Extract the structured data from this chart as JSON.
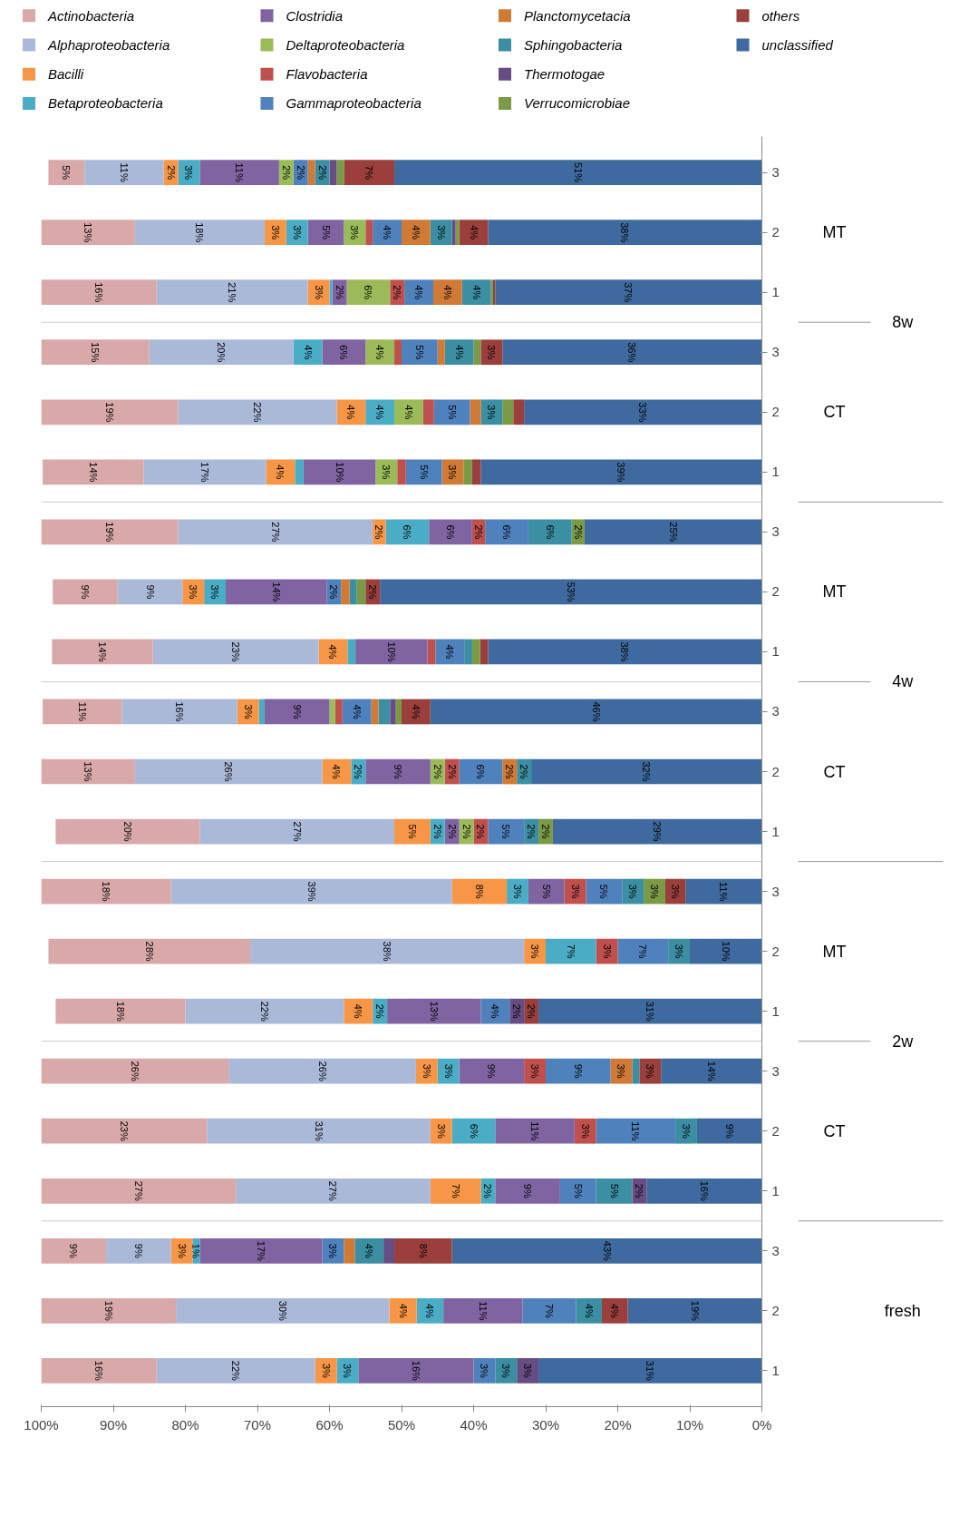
{
  "chart_data": {
    "type": "bar",
    "stacked": true,
    "orientation": "horizontal",
    "legend": "top",
    "grid": false,
    "categories": [
      "3",
      "2",
      "1",
      "3",
      "2",
      "1",
      "3",
      "2",
      "1",
      "3",
      "2",
      "1",
      "3",
      "2",
      "1",
      "3",
      "2",
      "1",
      "3",
      "2",
      "1"
    ],
    "xlim": [
      100,
      0
    ],
    "xticks": [
      {
        "value": 100,
        "label": "100%"
      },
      {
        "value": 90,
        "label": "90%"
      },
      {
        "value": 80,
        "label": "80%"
      },
      {
        "value": 70,
        "label": "70%"
      },
      {
        "value": 60,
        "label": "60%"
      },
      {
        "value": 50,
        "label": "50%"
      },
      {
        "value": 40,
        "label": "40%"
      },
      {
        "value": 30,
        "label": "30%"
      },
      {
        "value": 20,
        "label": "20%"
      },
      {
        "value": 10,
        "label": "10%"
      },
      {
        "value": 0,
        "label": "0%"
      }
    ],
    "annotations": [
      "MT",
      "CT",
      "MT",
      "CT",
      "MT",
      "CT",
      "8w",
      "4w",
      "2w",
      "fresh"
    ],
    "series": [
      {
        "name": "unclassified",
        "color": "#3f6a9f",
        "values": [
          51,
          38,
          37,
          36,
          33,
          39,
          24.6,
          53,
          38,
          46,
          32,
          29,
          10.6,
          10,
          31,
          14,
          9,
          16,
          43,
          18.6,
          31
        ],
        "value_labels": [
          "51%",
          "38%",
          "37%",
          "36%",
          "33%",
          "39%",
          "25%",
          "53%",
          "38%",
          "46%",
          "32%",
          "29%",
          "11%",
          "10%",
          "31%",
          "14%",
          "9%",
          "16%",
          "43%",
          "19%",
          "31%"
        ]
      },
      {
        "name": "others",
        "color": "#9a3f3c",
        "values": [
          7,
          4,
          0.3,
          3,
          1.5,
          1.2,
          0,
          2,
          1.1,
          4,
          0,
          0,
          2.8,
          0,
          2,
          3,
          0,
          0,
          8,
          3.6,
          0
        ],
        "value_labels": [
          "7%",
          "4%",
          null,
          "3%",
          null,
          null,
          null,
          "2%",
          null,
          "4%",
          null,
          null,
          "3%",
          null,
          "2%",
          "3%",
          null,
          null,
          "8%",
          "4%",
          null
        ]
      },
      {
        "name": "Verrucomicrobiae",
        "color": "#7a9a46",
        "values": [
          1,
          0.5,
          0.3,
          1,
          1.5,
          1.2,
          1.8,
          1.2,
          1.1,
          0.8,
          0,
          2,
          3,
          0,
          0,
          0,
          0,
          0,
          0,
          0,
          0
        ],
        "value_labels": [
          null,
          null,
          null,
          null,
          null,
          null,
          "2%",
          null,
          null,
          null,
          null,
          "2%",
          "3%",
          null,
          null,
          null,
          null,
          null,
          null,
          null,
          null
        ]
      },
      {
        "name": "Thermotogae",
        "color": "#664d83",
        "values": [
          1,
          0.5,
          0,
          0,
          0,
          0,
          0,
          0,
          0,
          0.8,
          0,
          0,
          0,
          0,
          2,
          0,
          0,
          2,
          1.5,
          0,
          3
        ],
        "value_labels": [
          null,
          null,
          null,
          null,
          null,
          null,
          null,
          null,
          null,
          null,
          null,
          null,
          null,
          null,
          "2%",
          null,
          null,
          "2%",
          null,
          null,
          "3%"
        ]
      },
      {
        "name": "Sphingobacteria",
        "color": "#3c8ea3",
        "values": [
          2,
          3,
          4,
          4,
          3,
          0,
          6,
          1,
          1.1,
          1.6,
          2,
          2,
          3,
          3,
          0,
          1,
          3,
          5,
          4,
          3.6,
          3
        ],
        "value_labels": [
          "2%",
          "3%",
          "4%",
          "4%",
          "3%",
          null,
          "6%",
          null,
          null,
          null,
          "2%",
          "2%",
          "3%",
          "3%",
          null,
          null,
          "3%",
          "5%",
          "4%",
          "4%",
          "3%"
        ]
      },
      {
        "name": "Planctomycetacia",
        "color": "#d07a36",
        "values": [
          1,
          4,
          4,
          1,
          1.5,
          3,
          0,
          1.2,
          0,
          1,
          2,
          0,
          0,
          0,
          0,
          3,
          0,
          0,
          1.5,
          0,
          0
        ],
        "value_labels": [
          null,
          "4%",
          "4%",
          null,
          null,
          "3%",
          null,
          null,
          null,
          null,
          "2%",
          null,
          null,
          null,
          null,
          "3%",
          null,
          null,
          null,
          null,
          null
        ]
      },
      {
        "name": "Gammaproteobacteria",
        "color": "#4f81bd",
        "values": [
          2,
          4,
          4,
          5,
          5,
          5,
          6,
          2,
          4,
          4,
          6,
          5,
          5,
          7,
          4,
          9,
          11,
          5,
          3,
          7.4,
          3
        ],
        "value_labels": [
          "2%",
          "4%",
          "4%",
          "5%",
          "5%",
          "5%",
          "6%",
          "2%",
          "4%",
          "4%",
          "6%",
          "5%",
          "5%",
          "7%",
          "4%",
          "9%",
          "11%",
          "5%",
          "3%",
          "7%",
          "3%"
        ]
      },
      {
        "name": "Flavobacteria",
        "color": "#c0504d",
        "values": [
          0,
          1,
          2,
          1,
          1.5,
          1.2,
          1.8,
          0,
          1.1,
          1,
          2,
          2,
          3,
          3,
          0,
          3,
          3,
          0,
          0,
          0,
          0
        ],
        "value_labels": [
          null,
          null,
          "2%",
          null,
          null,
          null,
          "2%",
          null,
          null,
          null,
          "2%",
          "2%",
          "3%",
          "3%",
          null,
          "3%",
          "3%",
          null,
          null,
          null,
          null
        ]
      },
      {
        "name": "Deltaproteobacteria",
        "color": "#9bbb59",
        "values": [
          2,
          3,
          6,
          4,
          4,
          3,
          0,
          0,
          0,
          0.8,
          2,
          2,
          0,
          0,
          0,
          0,
          0,
          0,
          0,
          0,
          0
        ],
        "value_labels": [
          "2%",
          "3%",
          "6%",
          "4%",
          "4%",
          "3%",
          null,
          null,
          null,
          null,
          "2%",
          "2%",
          null,
          null,
          null,
          null,
          null,
          null,
          null,
          null,
          null
        ]
      },
      {
        "name": "Clostridia",
        "color": "#8064a2",
        "values": [
          11,
          5,
          2,
          6,
          0,
          10,
          6,
          14,
          10,
          9,
          9,
          2,
          5,
          0,
          13,
          9,
          11,
          9,
          17,
          11.0,
          16
        ],
        "value_labels": [
          "11%",
          "5%",
          "2%",
          "6%",
          null,
          "10%",
          "6%",
          "14%",
          "10%",
          "9%",
          "9%",
          "2%",
          "5%",
          null,
          "13%",
          "9%",
          "11%",
          "9%",
          "17%",
          "11%",
          "16%"
        ]
      },
      {
        "name": "Betaproteobacteria",
        "color": "#4bacc6",
        "values": [
          3,
          3,
          0.4,
          4,
          4,
          1.2,
          6,
          3,
          1.1,
          0.8,
          2,
          2,
          3,
          7,
          2,
          3,
          6,
          2,
          1,
          3.7,
          3
        ],
        "value_labels": [
          "3%",
          "3%",
          null,
          "4%",
          "4%",
          null,
          "6%",
          "3%",
          null,
          null,
          "2%",
          "2%",
          "3%",
          "7%",
          "2%",
          "3%",
          "6%",
          "2%",
          "1%",
          "4%",
          "3%"
        ]
      },
      {
        "name": "Bacilli",
        "color": "#f79646",
        "values": [
          2,
          3,
          3,
          0,
          4,
          4,
          1.8,
          3,
          4,
          3,
          4,
          5,
          7.6,
          3,
          4,
          3,
          3,
          7,
          3,
          3.8,
          3
        ],
        "value_labels": [
          "2%",
          "3%",
          "3%",
          null,
          "4%",
          "4%",
          "2%",
          "3%",
          "4%",
          "3%",
          "4%",
          "5%",
          "8%",
          "3%",
          "4%",
          "3%",
          "3%",
          "7%",
          "3%",
          "4%",
          "3%"
        ]
      },
      {
        "name": "Alphaproteobacteria",
        "color": "#abb9d9",
        "values": [
          11,
          18,
          21,
          20,
          22,
          17,
          27,
          9,
          23,
          16,
          26,
          27,
          39,
          38,
          22,
          26,
          31,
          27,
          9,
          29.6,
          22
        ],
        "value_labels": [
          "11%",
          "18%",
          "21%",
          "20%",
          "22%",
          "17%",
          "27%",
          "9%",
          "23%",
          "16%",
          "26%",
          "27%",
          "39%",
          "38%",
          "22%",
          "26%",
          "31%",
          "27%",
          "9%",
          "30%",
          "22%"
        ]
      },
      {
        "name": "Actinobacteria",
        "color": "#d9a9a9",
        "values": [
          5,
          13,
          16,
          15,
          19,
          14,
          19,
          9,
          14,
          11,
          13,
          20,
          18,
          28,
          18,
          26,
          23,
          27,
          9,
          18.7,
          16
        ],
        "value_labels": [
          "5%",
          "13%",
          "16%",
          "15%",
          "19%",
          "14%",
          "19%",
          "9%",
          "14%",
          "11%",
          "13%",
          "20%",
          "18%",
          "28%",
          "18%",
          "26%",
          "23%",
          "27%",
          "9%",
          "19%",
          "16%"
        ]
      }
    ]
  }
}
